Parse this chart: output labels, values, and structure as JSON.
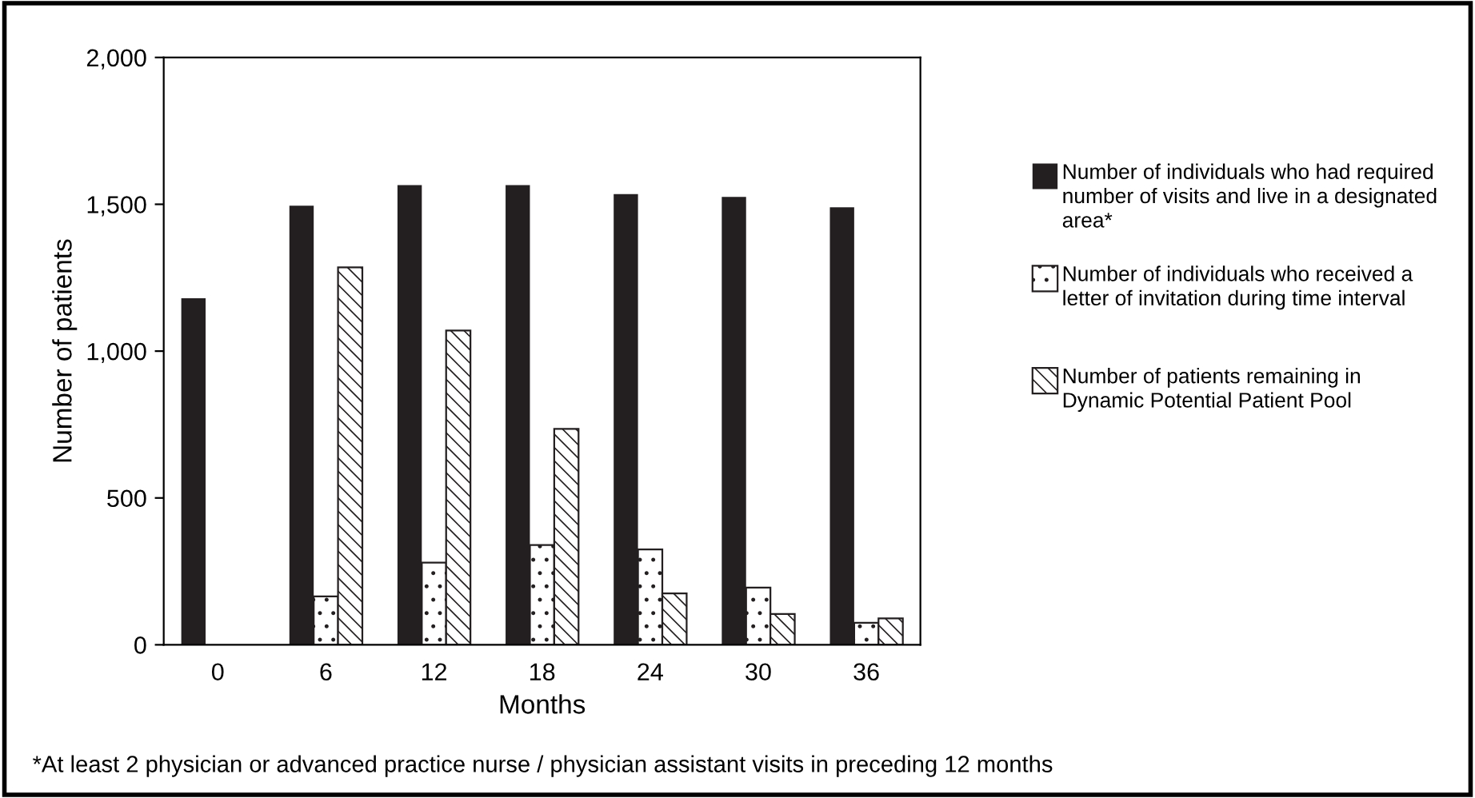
{
  "chart_data": {
    "type": "bar",
    "xlabel": "Months",
    "ylabel": "Number of patients",
    "categories": [
      "0",
      "6",
      "12",
      "18",
      "24",
      "30",
      "36"
    ],
    "series": [
      {
        "name": "Number of individuals who had required number of visits and live in a designated area*",
        "color": "#231f20",
        "values": [
          1180,
          1495,
          1565,
          1565,
          1535,
          1525,
          1490
        ]
      },
      {
        "name": "Number of individuals who received a letter of invitation during time interval",
        "color": "#231f20",
        "values": [
          null,
          165,
          280,
          340,
          325,
          195,
          75
        ]
      },
      {
        "name": "Number of patients remaining in Dynamic Potential Patient Pool",
        "color": "#231f20",
        "values": [
          null,
          1285,
          1070,
          735,
          175,
          105,
          90
        ]
      }
    ],
    "ylim": [
      0,
      2000
    ],
    "yticks": [
      0,
      500,
      {
        "value": 1000,
        "label": "1,000"
      },
      {
        "value": 1500,
        "label": "1,500"
      },
      {
        "value": 2000,
        "label": "2,000"
      }
    ],
    "grid": false,
    "legend": "right",
    "annotations": [
      "*At least 2 physician or advanced practice nurse / physician assistant visits in preceding 12 months"
    ]
  }
}
